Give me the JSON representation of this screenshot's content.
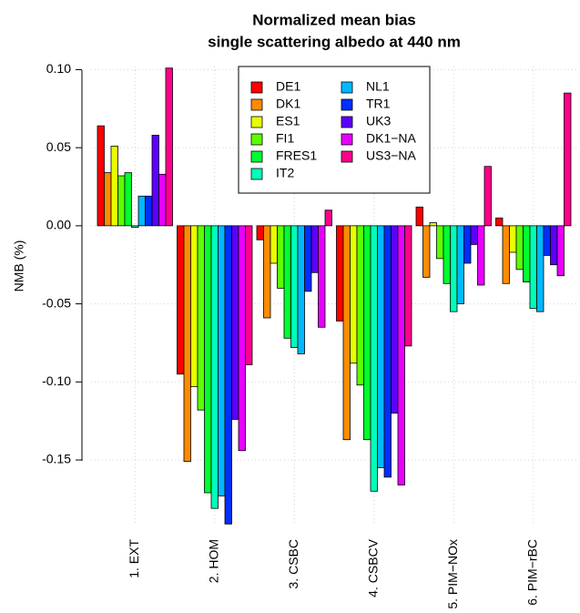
{
  "chart_data": {
    "type": "bar",
    "title": "Normalized mean bias",
    "subtitle": "single scattering albedo at 440 nm",
    "y_label": "NMB (%)",
    "categories": [
      "1. EXT",
      "2. HOM",
      "3. CSBC",
      "4. CSBCV",
      "5. PIM−NOx",
      "6. PIM−rBC"
    ],
    "series": [
      {
        "name": "DE1",
        "color": "#FF0000",
        "values": [
          0.064,
          -0.095,
          -0.009,
          -0.061,
          0.012,
          0.005
        ]
      },
      {
        "name": "DK1",
        "color": "#FF8B00",
        "values": [
          0.034,
          -0.151,
          -0.059,
          -0.137,
          -0.033,
          -0.037
        ]
      },
      {
        "name": "ES1",
        "color": "#E8FF00",
        "values": [
          0.051,
          -0.103,
          -0.024,
          -0.088,
          0.002,
          -0.017
        ]
      },
      {
        "name": "FI1",
        "color": "#5DFF00",
        "values": [
          0.032,
          -0.118,
          -0.04,
          -0.102,
          -0.021,
          -0.028
        ]
      },
      {
        "name": "FRES1",
        "color": "#00FF2E",
        "values": [
          0.034,
          -0.171,
          -0.072,
          -0.137,
          -0.037,
          -0.036
        ]
      },
      {
        "name": "IT2",
        "color": "#00FFB9",
        "values": [
          -0.001,
          -0.181,
          -0.078,
          -0.17,
          -0.055,
          -0.053
        ]
      },
      {
        "name": "NL1",
        "color": "#00B9FF",
        "values": [
          0.019,
          -0.173,
          -0.082,
          -0.155,
          -0.05,
          -0.055
        ]
      },
      {
        "name": "TR1",
        "color": "#002EFF",
        "values": [
          0.019,
          -0.191,
          -0.042,
          -0.161,
          -0.024,
          -0.019
        ]
      },
      {
        "name": "UK3",
        "color": "#5D00FF",
        "values": [
          0.058,
          -0.124,
          -0.03,
          -0.12,
          -0.012,
          -0.025
        ]
      },
      {
        "name": "DK1−NA",
        "color": "#E800FF",
        "values": [
          0.033,
          -0.144,
          -0.065,
          -0.166,
          -0.038,
          -0.032
        ]
      },
      {
        "name": "US3−NA",
        "color": "#FF008B",
        "values": [
          0.101,
          -0.089,
          0.01,
          -0.077,
          0.038,
          0.085
        ]
      }
    ],
    "ylim": [
      -0.192,
      0.102
    ],
    "yticks": [
      {
        "value": 0.1,
        "label": "0.10"
      },
      {
        "value": 0.05,
        "label": "0.05"
      },
      {
        "value": 0,
        "label": "0.00"
      },
      {
        "value": -0.05,
        "label": "-0.05"
      },
      {
        "value": -0.1,
        "label": "-0.10"
      },
      {
        "value": -0.15,
        "label": "-0.15"
      }
    ],
    "grid": true
  }
}
